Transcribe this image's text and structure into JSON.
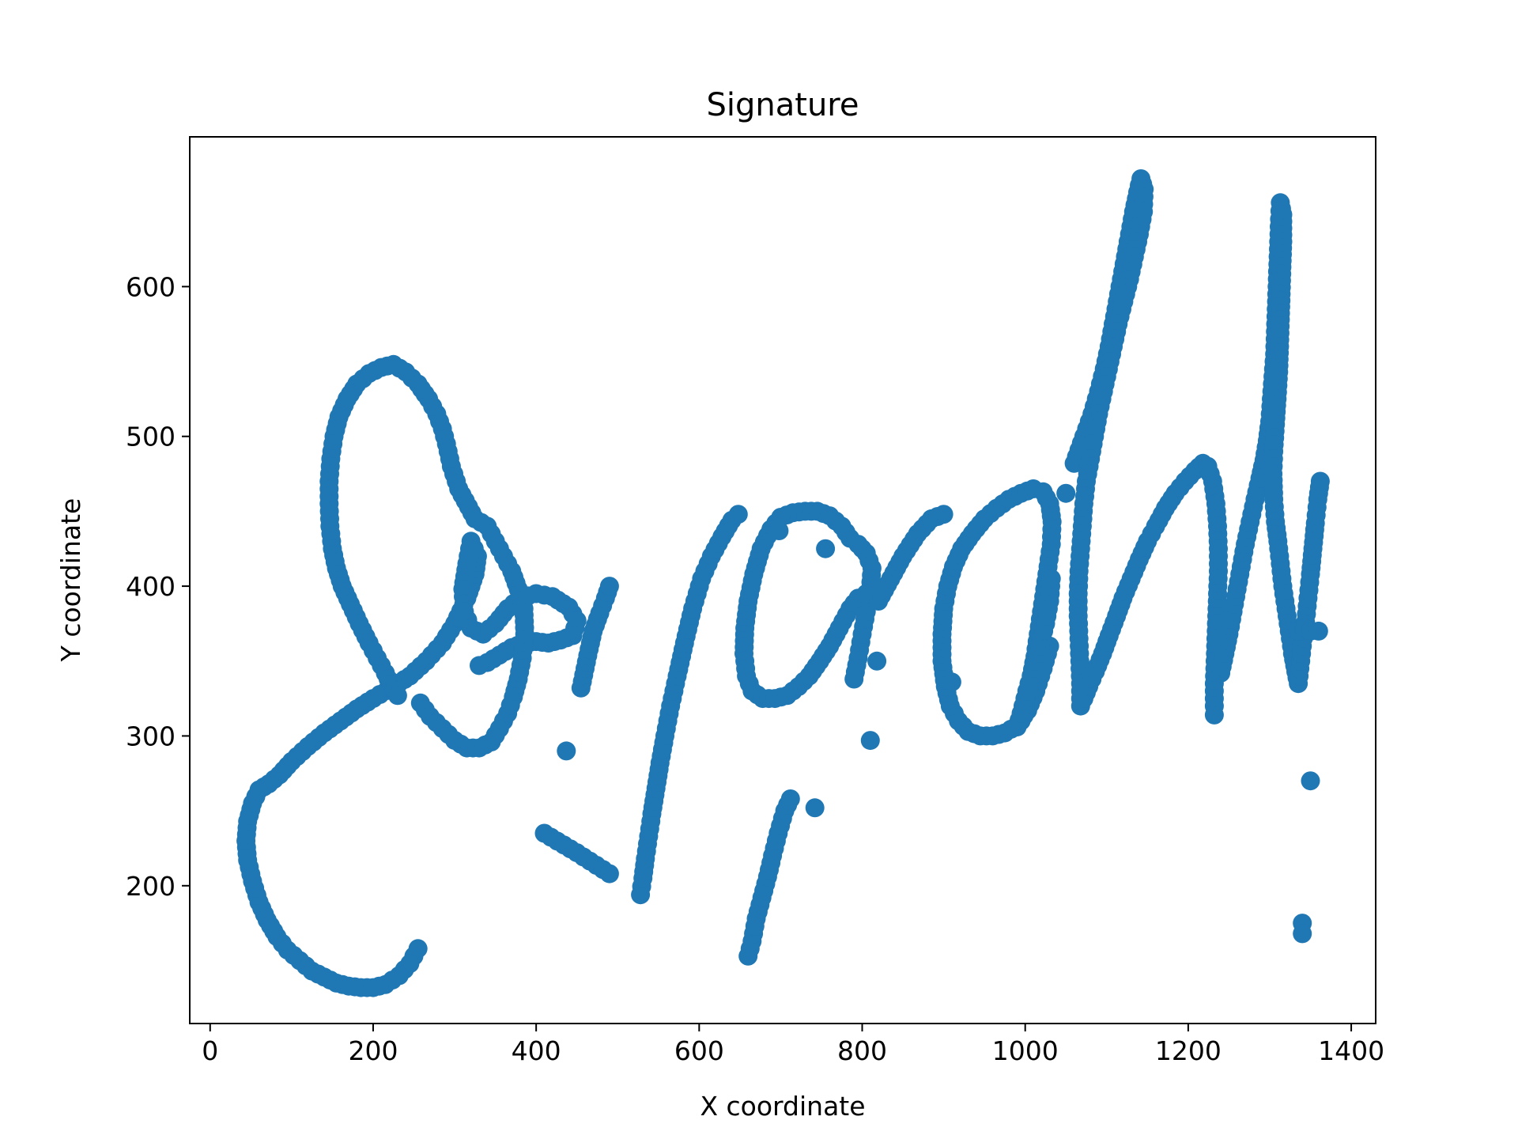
{
  "chart_data": {
    "type": "scatter",
    "title": "Signature",
    "xlabel": "X coordinate",
    "ylabel": "Y coordinate",
    "xlim": [
      -25,
      1430
    ],
    "ylim": [
      108,
      700
    ],
    "xticks": [
      0,
      200,
      400,
      600,
      800,
      1000,
      1200,
      1400
    ],
    "yticks": [
      200,
      300,
      400,
      500,
      600
    ],
    "xtick_labels": [
      "0",
      "200",
      "400",
      "600",
      "800",
      "1000",
      "1200",
      "1400"
    ],
    "ytick_labels": [
      "200",
      "300",
      "400",
      "500",
      "600"
    ],
    "grid": false,
    "marker_color": "#1f77b4",
    "strokes": [
      [
        [
          255,
          158
        ],
        [
          245,
          148
        ],
        [
          232,
          140
        ],
        [
          215,
          134
        ],
        [
          200,
          132
        ],
        [
          185,
          132
        ],
        [
          170,
          133
        ],
        [
          155,
          135
        ],
        [
          140,
          139
        ],
        [
          125,
          143
        ],
        [
          110,
          150
        ],
        [
          95,
          157
        ],
        [
          82,
          166
        ],
        [
          70,
          177
        ],
        [
          60,
          189
        ],
        [
          52,
          203
        ],
        [
          46,
          217
        ],
        [
          44,
          230
        ],
        [
          46,
          243
        ],
        [
          52,
          255
        ],
        [
          60,
          264
        ],
        [
          72,
          268
        ],
        [
          85,
          274
        ],
        [
          100,
          283
        ],
        [
          120,
          293
        ],
        [
          140,
          302
        ],
        [
          160,
          310
        ],
        [
          180,
          318
        ],
        [
          200,
          325
        ],
        [
          225,
          333
        ],
        [
          245,
          340
        ],
        [
          265,
          350
        ],
        [
          285,
          362
        ],
        [
          300,
          375
        ],
        [
          315,
          392
        ],
        [
          325,
          408
        ],
        [
          328,
          420
        ],
        [
          320,
          430
        ],
        [
          315,
          415
        ],
        [
          310,
          398
        ],
        [
          312,
          383
        ],
        [
          320,
          372
        ],
        [
          335,
          368
        ],
        [
          350,
          375
        ],
        [
          365,
          385
        ],
        [
          380,
          392
        ],
        [
          400,
          395
        ],
        [
          420,
          393
        ],
        [
          440,
          386
        ],
        [
          450,
          377
        ],
        [
          445,
          367
        ],
        [
          430,
          364
        ],
        [
          415,
          362
        ],
        [
          400,
          363
        ],
        [
          385,
          362
        ],
        [
          370,
          359
        ],
        [
          355,
          354
        ],
        [
          340,
          349
        ],
        [
          330,
          347
        ]
      ],
      [
        [
          258,
          322
        ],
        [
          270,
          313
        ],
        [
          285,
          305
        ],
        [
          300,
          297
        ],
        [
          315,
          292
        ],
        [
          330,
          292
        ],
        [
          345,
          296
        ],
        [
          355,
          305
        ],
        [
          365,
          315
        ],
        [
          372,
          326
        ],
        [
          378,
          338
        ],
        [
          383,
          352
        ],
        [
          386,
          368
        ],
        [
          385,
          385
        ],
        [
          378,
          398
        ],
        [
          370,
          410
        ],
        [
          360,
          420
        ],
        [
          350,
          430
        ],
        [
          340,
          440
        ],
        [
          325,
          445
        ],
        [
          305,
          465
        ],
        [
          296,
          480
        ],
        [
          290,
          495
        ],
        [
          285,
          505
        ],
        [
          278,
          515
        ],
        [
          268,
          525
        ],
        [
          255,
          535
        ],
        [
          240,
          543
        ],
        [
          225,
          548
        ],
        [
          210,
          546
        ],
        [
          195,
          542
        ],
        [
          180,
          535
        ],
        [
          168,
          525
        ],
        [
          158,
          513
        ],
        [
          152,
          500
        ],
        [
          148,
          485
        ],
        [
          146,
          470
        ],
        [
          146,
          455
        ],
        [
          147,
          440
        ],
        [
          150,
          425
        ],
        [
          155,
          412
        ],
        [
          162,
          400
        ],
        [
          172,
          388
        ],
        [
          183,
          375
        ],
        [
          195,
          362
        ],
        [
          205,
          352
        ],
        [
          215,
          342
        ],
        [
          222,
          334
        ],
        [
          230,
          327
        ]
      ],
      [
        [
          410,
          235
        ],
        [
          450,
          222
        ],
        [
          490,
          208
        ]
      ],
      [
        [
          437,
          290
        ]
      ],
      [
        [
          455,
          332
        ],
        [
          460,
          345
        ],
        [
          465,
          358
        ],
        [
          470,
          370
        ],
        [
          478,
          382
        ],
        [
          485,
          392
        ],
        [
          490,
          400
        ]
      ],
      [
        [
          528,
          194
        ],
        [
          531,
          205
        ],
        [
          534,
          218
        ],
        [
          538,
          233
        ],
        [
          542,
          248
        ],
        [
          547,
          265
        ],
        [
          552,
          282
        ],
        [
          558,
          300
        ],
        [
          565,
          320
        ],
        [
          573,
          340
        ],
        [
          582,
          362
        ],
        [
          592,
          385
        ],
        [
          603,
          405
        ],
        [
          615,
          420
        ],
        [
          628,
          433
        ],
        [
          640,
          444
        ],
        [
          648,
          448
        ]
      ],
      [
        [
          660,
          153
        ],
        [
          665,
          163
        ],
        [
          670,
          178
        ],
        [
          677,
          192
        ],
        [
          684,
          206
        ],
        [
          690,
          220
        ],
        [
          697,
          235
        ],
        [
          705,
          250
        ],
        [
          712,
          258
        ]
      ],
      [
        [
          742,
          252
        ]
      ],
      [
        [
          698,
          437
        ]
      ],
      [
        [
          755,
          425
        ]
      ],
      [
        [
          810,
          297
        ]
      ],
      [
        [
          818,
          350
        ]
      ],
      [
        [
          790,
          338
        ],
        [
          795,
          352
        ],
        [
          800,
          368
        ],
        [
          805,
          383
        ],
        [
          810,
          398
        ],
        [
          812,
          412
        ],
        [
          805,
          422
        ],
        [
          795,
          428
        ],
        [
          785,
          432
        ],
        [
          775,
          440
        ],
        [
          760,
          447
        ],
        [
          745,
          450
        ],
        [
          730,
          450
        ],
        [
          715,
          449
        ],
        [
          700,
          446
        ],
        [
          688,
          438
        ],
        [
          676,
          425
        ],
        [
          667,
          408
        ],
        [
          660,
          390
        ],
        [
          656,
          372
        ],
        [
          655,
          355
        ],
        [
          658,
          340
        ],
        [
          665,
          330
        ],
        [
          678,
          325
        ],
        [
          693,
          325
        ],
        [
          708,
          327
        ],
        [
          722,
          333
        ],
        [
          735,
          340
        ],
        [
          748,
          350
        ],
        [
          760,
          360
        ],
        [
          772,
          372
        ],
        [
          785,
          385
        ],
        [
          795,
          392
        ],
        [
          805,
          395
        ]
      ],
      [
        [
          910,
          336
        ]
      ],
      [
        [
          820,
          390
        ],
        [
          835,
          405
        ],
        [
          850,
          420
        ],
        [
          868,
          435
        ],
        [
          885,
          445
        ],
        [
          900,
          448
        ]
      ],
      [
        [
          1030,
          360
        ],
        [
          1022,
          345
        ],
        [
          1013,
          330
        ],
        [
          1003,
          317
        ],
        [
          990,
          307
        ],
        [
          975,
          302
        ],
        [
          960,
          300
        ],
        [
          945,
          300
        ],
        [
          930,
          303
        ],
        [
          918,
          310
        ],
        [
          908,
          320
        ],
        [
          902,
          333
        ],
        [
          898,
          350
        ],
        [
          898,
          368
        ],
        [
          900,
          385
        ],
        [
          905,
          400
        ],
        [
          912,
          413
        ],
        [
          922,
          425
        ],
        [
          935,
          435
        ],
        [
          950,
          445
        ],
        [
          965,
          452
        ],
        [
          980,
          458
        ],
        [
          995,
          462
        ],
        [
          1010,
          465
        ],
        [
          1022,
          463
        ],
        [
          1030,
          455
        ],
        [
          1033,
          443
        ],
        [
          1032,
          428
        ],
        [
          1028,
          413
        ],
        [
          1024,
          398
        ],
        [
          1020,
          383
        ],
        [
          1016,
          368
        ],
        [
          1012,
          353
        ],
        [
          1006,
          336
        ],
        [
          1000,
          320
        ],
        [
          995,
          310
        ],
        [
          990,
          306
        ],
        [
          995,
          315
        ],
        [
          1002,
          330
        ],
        [
          1010,
          345
        ],
        [
          1018,
          360
        ],
        [
          1025,
          375
        ],
        [
          1030,
          390
        ],
        [
          1032,
          405
        ]
      ],
      [
        [
          1050,
          462
        ]
      ],
      [
        [
          1060,
          482
        ],
        [
          1072,
          500
        ],
        [
          1082,
          515
        ],
        [
          1090,
          530
        ],
        [
          1097,
          545
        ],
        [
          1103,
          560
        ],
        [
          1108,
          575
        ],
        [
          1113,
          590
        ],
        [
          1118,
          605
        ],
        [
          1123,
          620
        ],
        [
          1128,
          635
        ],
        [
          1133,
          650
        ],
        [
          1138,
          663
        ],
        [
          1142,
          672
        ],
        [
          1146,
          665
        ],
        [
          1145,
          650
        ],
        [
          1140,
          635
        ],
        [
          1134,
          620
        ],
        [
          1128,
          605
        ],
        [
          1121,
          590
        ],
        [
          1114,
          575
        ],
        [
          1108,
          560
        ],
        [
          1102,
          545
        ],
        [
          1096,
          530
        ],
        [
          1090,
          515
        ],
        [
          1085,
          500
        ],
        [
          1080,
          485
        ],
        [
          1075,
          470
        ],
        [
          1072,
          455
        ],
        [
          1070,
          440
        ],
        [
          1068,
          425
        ],
        [
          1066,
          410
        ],
        [
          1065,
          395
        ],
        [
          1065,
          380
        ],
        [
          1066,
          365
        ],
        [
          1067,
          350
        ],
        [
          1068,
          335
        ],
        [
          1068,
          320
        ],
        [
          1072,
          325
        ],
        [
          1078,
          333
        ],
        [
          1086,
          343
        ],
        [
          1095,
          355
        ],
        [
          1103,
          367
        ],
        [
          1112,
          380
        ],
        [
          1120,
          392
        ],
        [
          1130,
          405
        ],
        [
          1140,
          418
        ],
        [
          1150,
          430
        ],
        [
          1160,
          440
        ],
        [
          1172,
          452
        ],
        [
          1184,
          462
        ],
        [
          1196,
          470
        ],
        [
          1208,
          477
        ],
        [
          1218,
          482
        ],
        [
          1224,
          480
        ],
        [
          1230,
          470
        ],
        [
          1234,
          455
        ],
        [
          1236,
          440
        ],
        [
          1237,
          425
        ],
        [
          1237,
          410
        ],
        [
          1236,
          395
        ],
        [
          1235,
          380
        ],
        [
          1234,
          365
        ],
        [
          1233,
          350
        ],
        [
          1232,
          335
        ],
        [
          1232,
          320
        ],
        [
          1232,
          314
        ]
      ],
      [
        [
          1240,
          342
        ],
        [
          1245,
          355
        ],
        [
          1250,
          368
        ],
        [
          1255,
          383
        ],
        [
          1260,
          398
        ],
        [
          1265,
          413
        ],
        [
          1270,
          428
        ],
        [
          1276,
          443
        ],
        [
          1282,
          458
        ],
        [
          1288,
          472
        ],
        [
          1293,
          484
        ],
        [
          1297,
          497
        ],
        [
          1300,
          510
        ],
        [
          1302,
          525
        ],
        [
          1304,
          540
        ],
        [
          1306,
          555
        ],
        [
          1307,
          570
        ],
        [
          1308,
          585
        ],
        [
          1309,
          600
        ],
        [
          1310,
          615
        ],
        [
          1311,
          630
        ],
        [
          1312,
          645
        ],
        [
          1313,
          656
        ],
        [
          1316,
          648
        ],
        [
          1316,
          630
        ],
        [
          1315,
          613
        ],
        [
          1314,
          595
        ],
        [
          1313,
          578
        ],
        [
          1312,
          560
        ],
        [
          1311,
          543
        ],
        [
          1309,
          525
        ],
        [
          1307,
          508
        ],
        [
          1305,
          490
        ],
        [
          1304,
          475
        ],
        [
          1305,
          458
        ],
        [
          1307,
          443
        ],
        [
          1310,
          430
        ],
        [
          1313,
          415
        ],
        [
          1316,
          400
        ],
        [
          1320,
          385
        ],
        [
          1324,
          370
        ],
        [
          1328,
          355
        ],
        [
          1332,
          343
        ],
        [
          1335,
          335
        ],
        [
          1337,
          345
        ],
        [
          1340,
          360
        ],
        [
          1344,
          376
        ],
        [
          1347,
          392
        ],
        [
          1350,
          408
        ],
        [
          1353,
          425
        ],
        [
          1356,
          442
        ],
        [
          1359,
          458
        ],
        [
          1362,
          470
        ]
      ],
      [
        [
          1335,
          370
        ],
        [
          1342,
          372
        ],
        [
          1350,
          370
        ],
        [
          1360,
          370
        ]
      ],
      [
        [
          1350,
          270
        ]
      ],
      [
        [
          1340,
          175
        ],
        [
          1340,
          168
        ]
      ]
    ]
  }
}
